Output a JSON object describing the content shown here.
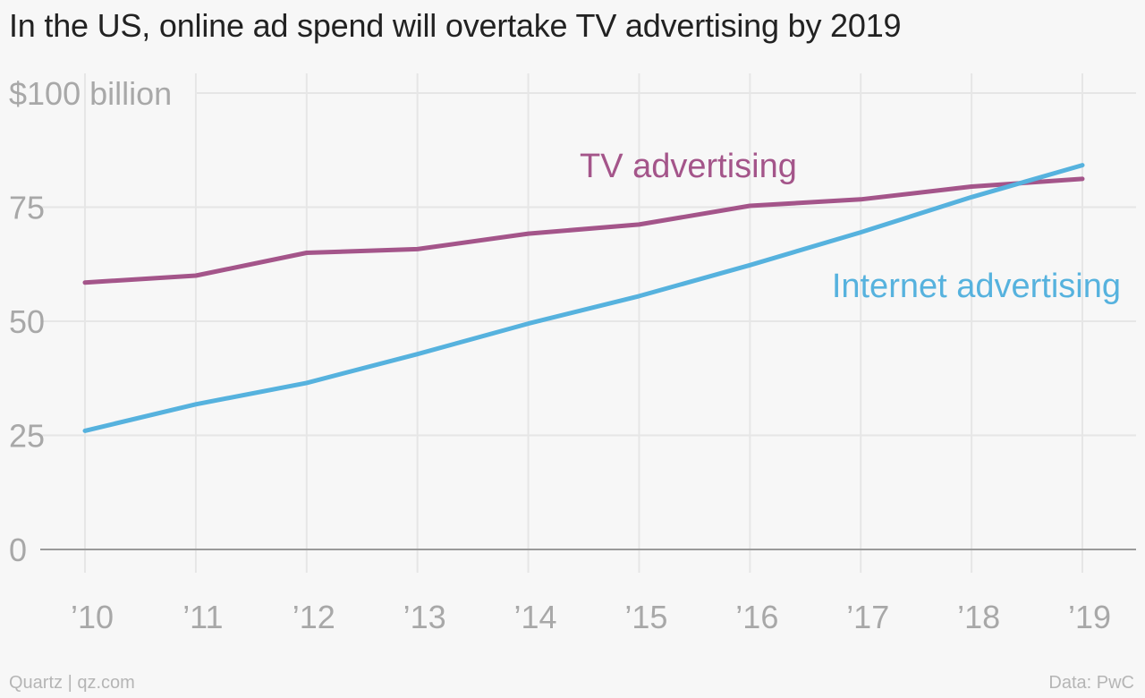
{
  "chart_data": {
    "type": "line",
    "title": "In the US, online ad spend will overtake TV advertising by 2019",
    "x": [
      "’10",
      "’11",
      "’12",
      "’13",
      "’14",
      "’15",
      "’16",
      "’17",
      "’18",
      "’19"
    ],
    "y_ticks": [
      "0",
      "25",
      "50",
      "75",
      "$100 billion"
    ],
    "ylim": [
      0,
      100
    ],
    "grid": true,
    "series": [
      {
        "name": "TV advertising",
        "color": "#a4558a",
        "values": [
          58.5,
          60,
          65,
          65.8,
          69.2,
          71.2,
          75.3,
          76.7,
          79.5,
          81.2
        ]
      },
      {
        "name": "Internet advertising",
        "color": "#56b2de",
        "values": [
          26,
          31.8,
          36.5,
          42.8,
          49.5,
          55.5,
          62.3,
          69.5,
          77.2,
          84.2
        ]
      }
    ]
  },
  "footer": {
    "source_left": "Quartz | qz.com",
    "source_right": "Data: PwC"
  }
}
